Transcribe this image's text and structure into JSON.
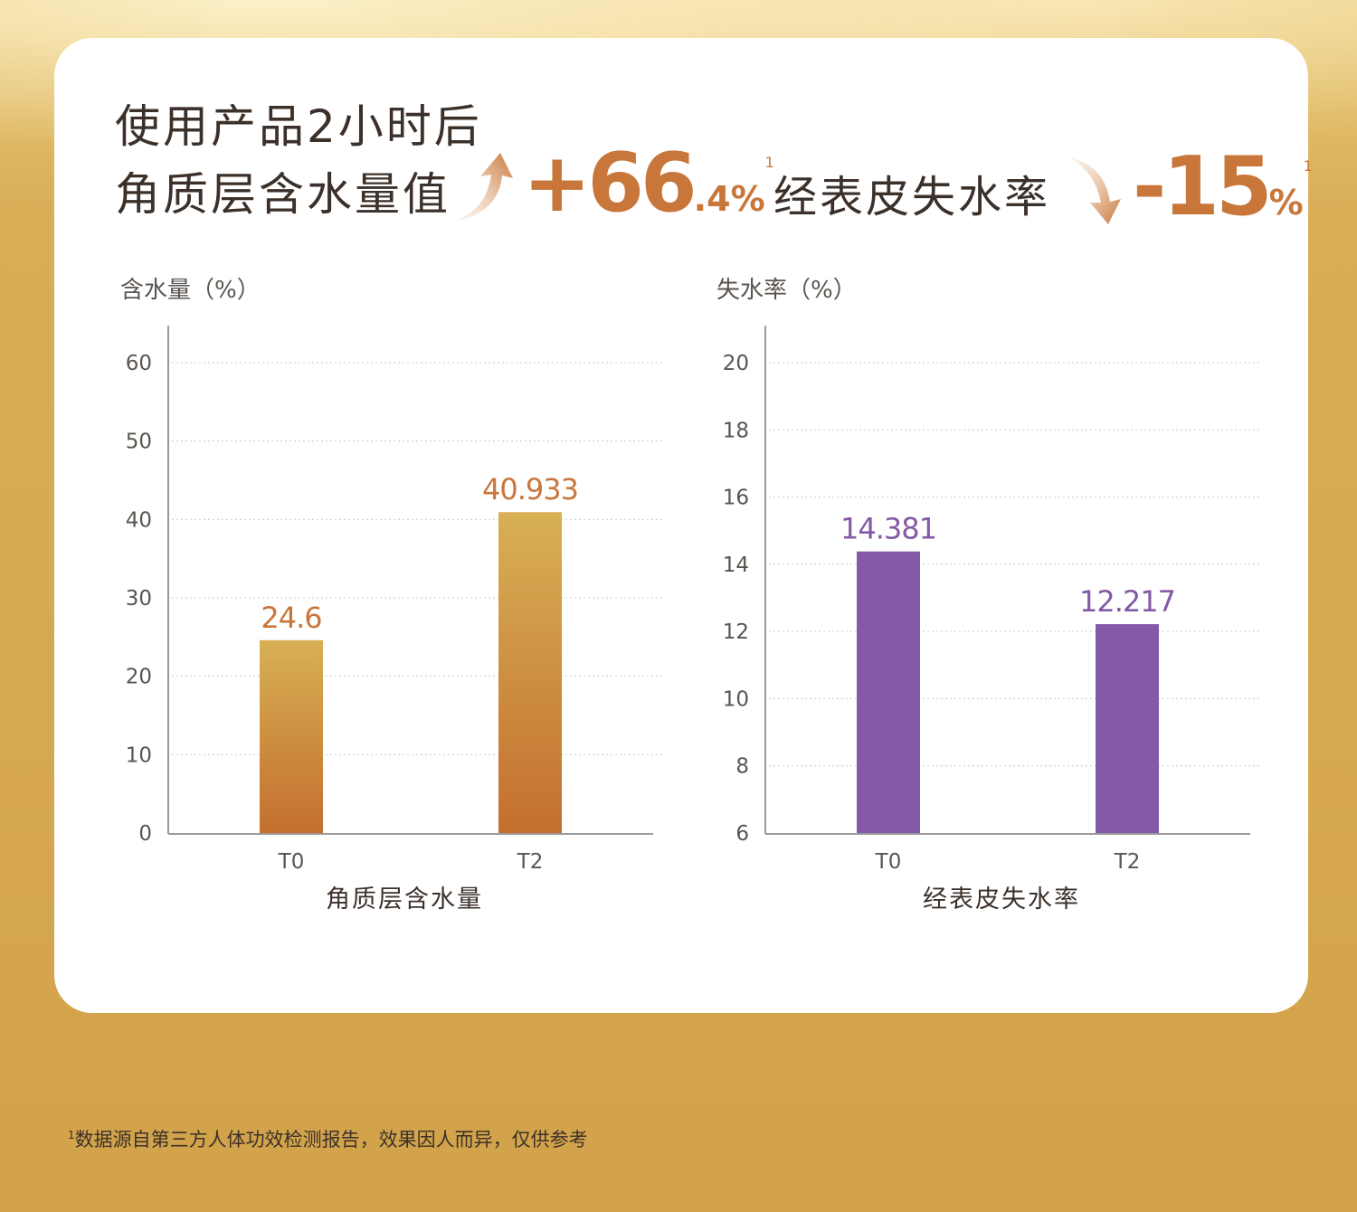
{
  "headline": {
    "line1": "使用产品2小时后",
    "line2": "角质层含水量值",
    "line3": "经表皮失水率",
    "increase": {
      "sign": "+",
      "value": "66",
      "decimal": ".4",
      "unit": "%",
      "note": "1"
    },
    "decrease": {
      "sign": "-",
      "value": "15",
      "unit": "%",
      "note": "1"
    }
  },
  "footnote": {
    "mark": "1",
    "text": "数据源自第三方人体功效检测报告，效果因人而异，仅供参考"
  },
  "colors": {
    "gold_top": "#d7b055",
    "gold_bottom": "#c46f2e",
    "purple": "#8459a5",
    "accent": "#c8763a"
  },
  "chart_data": [
    {
      "type": "bar",
      "title": "",
      "ylabel": "含水量（%）",
      "xlabel": "角质层含水量",
      "categories": [
        "T0",
        "T2"
      ],
      "values": [
        24.6,
        40.933
      ],
      "value_labels": [
        "24.6",
        "40.933"
      ],
      "ylim": [
        0,
        60
      ],
      "yticks": [
        "0",
        "10",
        "20",
        "30",
        "40",
        "50",
        "60"
      ],
      "grid": true
    },
    {
      "type": "bar",
      "title": "",
      "ylabel": "失水率（%）",
      "xlabel": "经表皮失水率",
      "categories": [
        "T0",
        "T2"
      ],
      "values": [
        14.381,
        12.217
      ],
      "value_labels": [
        "14.381",
        "12.217"
      ],
      "ylim": [
        6,
        20
      ],
      "yticks": [
        "6",
        "8",
        "10",
        "12",
        "14",
        "16",
        "18",
        "20"
      ],
      "grid": true
    }
  ]
}
